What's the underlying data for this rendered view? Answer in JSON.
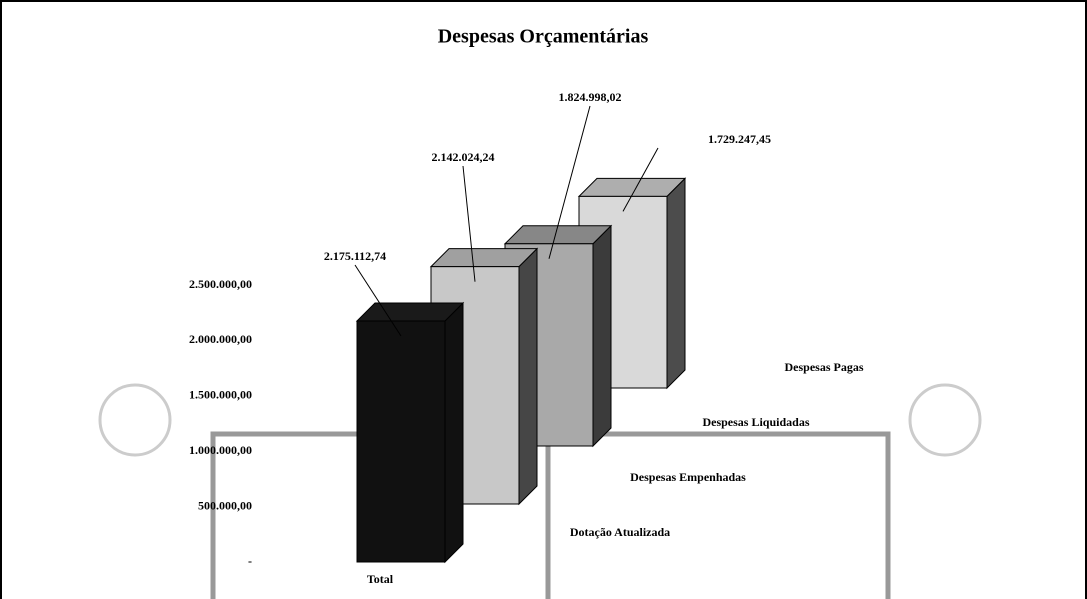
{
  "chart_data": {
    "type": "bar3d",
    "title": "Despesas Orçamentárias",
    "categories": [
      "Total"
    ],
    "series": [
      {
        "name": "Dotação Atualizada",
        "color": "#111111",
        "values": [
          2175112.74
        ],
        "value_labels": [
          "2.175.112,74"
        ]
      },
      {
        "name": "Despesas Empenhadas",
        "color": "#c8c8c8",
        "values": [
          2142024.24
        ],
        "value_labels": [
          "2.142.024,24"
        ]
      },
      {
        "name": "Despesas Liquidadas",
        "color": "#a9a9a9",
        "values": [
          1824998.02
        ],
        "value_labels": [
          "1.824.998,02"
        ]
      },
      {
        "name": "Despesas Pagas",
        "color": "#d9d9d9",
        "values": [
          1729247.45
        ],
        "value_labels": [
          "1.729.247,45"
        ]
      }
    ],
    "ylim": [
      0,
      2500000
    ],
    "yticks": [
      {
        "value": 0,
        "label": "-"
      },
      {
        "value": 500000,
        "label": "500.000,00"
      },
      {
        "value": 1000000,
        "label": "1.000.000,00"
      },
      {
        "value": 1500000,
        "label": "1.500.000,00"
      },
      {
        "value": 2000000,
        "label": "2.000.000,00"
      },
      {
        "value": 2500000,
        "label": "2.500.000,00"
      }
    ]
  }
}
